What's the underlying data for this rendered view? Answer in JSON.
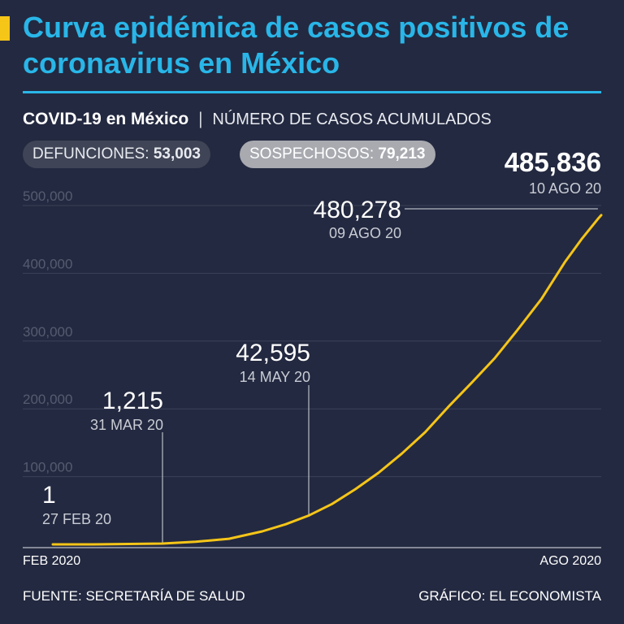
{
  "header": {
    "title": "Curva epidémica de casos positivos de coronavirus en México"
  },
  "subtitle": {
    "main": "COVID-19 en México",
    "separator": "|",
    "detail": "NÚMERO DE CASOS ACUMULADOS"
  },
  "stats": {
    "deaths_label": "DEFUNCIONES:",
    "deaths_value": "53,003",
    "suspects_label": "SOSPECHOSOS:",
    "suspects_value": "79,213"
  },
  "axis": {
    "start_label": "FEB 2020",
    "end_label": "AGO 2020"
  },
  "footer": {
    "source": "FUENTE: SECRETARÍA DE SALUD",
    "credit": "GRÁFICO: EL ECONOMISTA"
  },
  "colors": {
    "background": "#232940",
    "title": "#29b6e8",
    "line": "#f5c518",
    "grid": "#3b4258",
    "tick_text": "#555c70"
  },
  "chart_data": {
    "type": "line",
    "title": "",
    "xlabel": "",
    "ylabel": "",
    "ylim": [
      0,
      500000
    ],
    "xlim": [
      "2020-02-27",
      "2020-08-10"
    ],
    "yticks": [
      100000,
      200000,
      300000,
      400000,
      500000
    ],
    "ytick_labels": [
      "100,000",
      "200,000",
      "300,000",
      "400,000",
      "500,000"
    ],
    "grid": true,
    "series": [
      {
        "name": "",
        "x": [
          "2020-02-27",
          "2020-03-10",
          "2020-03-31",
          "2020-04-10",
          "2020-04-20",
          "2020-04-30",
          "2020-05-07",
          "2020-05-14",
          "2020-05-21",
          "2020-05-28",
          "2020-06-04",
          "2020-06-11",
          "2020-06-18",
          "2020-06-25",
          "2020-07-02",
          "2020-07-09",
          "2020-07-16",
          "2020-07-23",
          "2020-07-30",
          "2020-08-04",
          "2020-08-09",
          "2020-08-10"
        ],
        "values": [
          1,
          7,
          1215,
          3844,
          8261,
          19224,
          29616,
          42595,
          59567,
          81400,
          105680,
          133974,
          165455,
          202951,
          238511,
          275003,
          317635,
          362274,
          416179,
          449961,
          480278,
          485836
        ]
      }
    ],
    "annotations": [
      {
        "value": "1",
        "date": "27 FEB 20",
        "x": "2020-02-27",
        "y": 1
      },
      {
        "value": "1,215",
        "date": "31 MAR 20",
        "x": "2020-03-31",
        "y": 1215
      },
      {
        "value": "42,595",
        "date": "14 MAY 20",
        "x": "2020-05-14",
        "y": 42595
      },
      {
        "value": "480,278",
        "date": "09 AGO 20",
        "x": "2020-08-09",
        "y": 480278
      },
      {
        "value": "485,836",
        "date": "10 AGO 20",
        "x": "2020-08-10",
        "y": 485836
      }
    ]
  }
}
